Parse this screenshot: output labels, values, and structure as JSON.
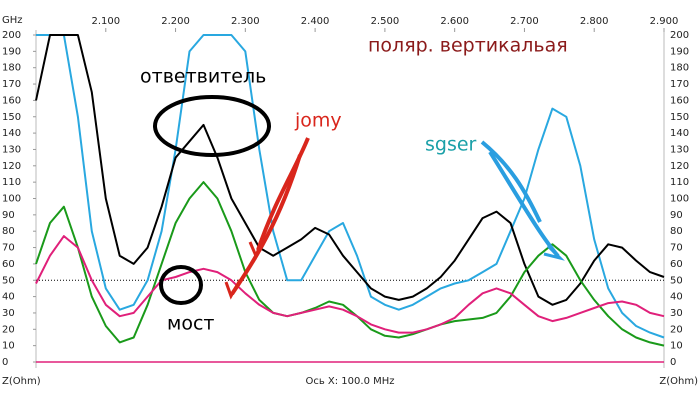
{
  "chart_data": {
    "type": "line",
    "x_unit": "GHz",
    "x_axis_note": "Ось X: 100.0 MHz",
    "z_left": "Z(Ohm)",
    "z_right": "Z(Ohm)",
    "annotations": [
      "ответвитель",
      "jomy",
      "sgser",
      "мост",
      "поляр. вертикальая"
    ],
    "x": [
      2,
      2.02,
      2.04,
      2.06,
      2.08,
      2.1,
      2.12,
      2.14,
      2.16,
      2.18,
      2.2,
      2.22,
      2.24,
      2.26,
      2.28,
      2.3,
      2.32,
      2.34,
      2.36,
      2.38,
      2.4,
      2.42,
      2.44,
      2.46,
      2.48,
      2.5,
      2.52,
      2.54,
      2.56,
      2.58,
      2.6,
      2.62,
      2.64,
      2.66,
      2.68,
      2.7,
      2.72,
      2.74,
      2.76,
      2.78,
      2.8,
      2.82,
      2.84,
      2.86,
      2.88,
      2.9
    ],
    "series": [
      {
        "color": "#29a8e0",
        "values": [
          200,
          200,
          200,
          150,
          80,
          45,
          32,
          35,
          50,
          80,
          130,
          190,
          200,
          200,
          200,
          190,
          130,
          80,
          50,
          50,
          65,
          80,
          85,
          65,
          40,
          35,
          32,
          35,
          40,
          45,
          48,
          50,
          55,
          60,
          80,
          100,
          130,
          155,
          150,
          120,
          75,
          45,
          30,
          22,
          18,
          15
        ]
      },
      {
        "color": "#000000",
        "values": [
          160,
          200,
          200,
          200,
          165,
          100,
          65,
          60,
          70,
          95,
          125,
          135,
          145,
          125,
          100,
          85,
          70,
          65,
          70,
          75,
          82,
          78,
          65,
          55,
          45,
          40,
          38,
          40,
          45,
          52,
          62,
          75,
          88,
          92,
          85,
          60,
          40,
          35,
          38,
          48,
          62,
          72,
          70,
          62,
          55,
          52
        ]
      },
      {
        "color": "#1a9a1a",
        "values": [
          60,
          85,
          95,
          70,
          40,
          22,
          12,
          15,
          35,
          60,
          85,
          100,
          110,
          100,
          80,
          55,
          38,
          30,
          28,
          30,
          33,
          37,
          35,
          28,
          20,
          16,
          15,
          17,
          20,
          23,
          25,
          26,
          27,
          30,
          40,
          55,
          65,
          72,
          65,
          50,
          38,
          28,
          20,
          15,
          12,
          10
        ]
      },
      {
        "color": "#e0207a",
        "values": [
          48,
          65,
          77,
          70,
          50,
          35,
          28,
          30,
          40,
          50,
          52,
          55,
          57,
          55,
          50,
          42,
          35,
          30,
          28,
          30,
          32,
          34,
          32,
          28,
          23,
          20,
          18,
          18,
          20,
          23,
          27,
          35,
          42,
          45,
          42,
          35,
          28,
          25,
          27,
          30,
          33,
          36,
          37,
          35,
          30,
          28
        ]
      }
    ],
    "xlim": [
      2.0,
      2.9
    ],
    "xticks": [
      {
        "value": 2.1,
        "label": "2.100"
      },
      {
        "value": 2.2,
        "label": "2.200"
      },
      {
        "value": 2.3,
        "label": "2.300"
      },
      {
        "value": 2.4,
        "label": "2.400"
      },
      {
        "value": 2.5,
        "label": "2.500"
      },
      {
        "value": 2.6,
        "label": "2.600"
      },
      {
        "value": 2.7,
        "label": "2.700"
      },
      {
        "value": 2.8,
        "label": "2.800"
      },
      {
        "value": 2.9,
        "label": "2.900"
      }
    ],
    "ylim": [
      0,
      200
    ],
    "yticks": [
      0,
      10,
      20,
      30,
      40,
      50,
      60,
      70,
      80,
      90,
      100,
      110,
      120,
      130,
      140,
      150,
      160,
      170,
      180,
      190,
      200
    ],
    "reference_line": 50
  }
}
